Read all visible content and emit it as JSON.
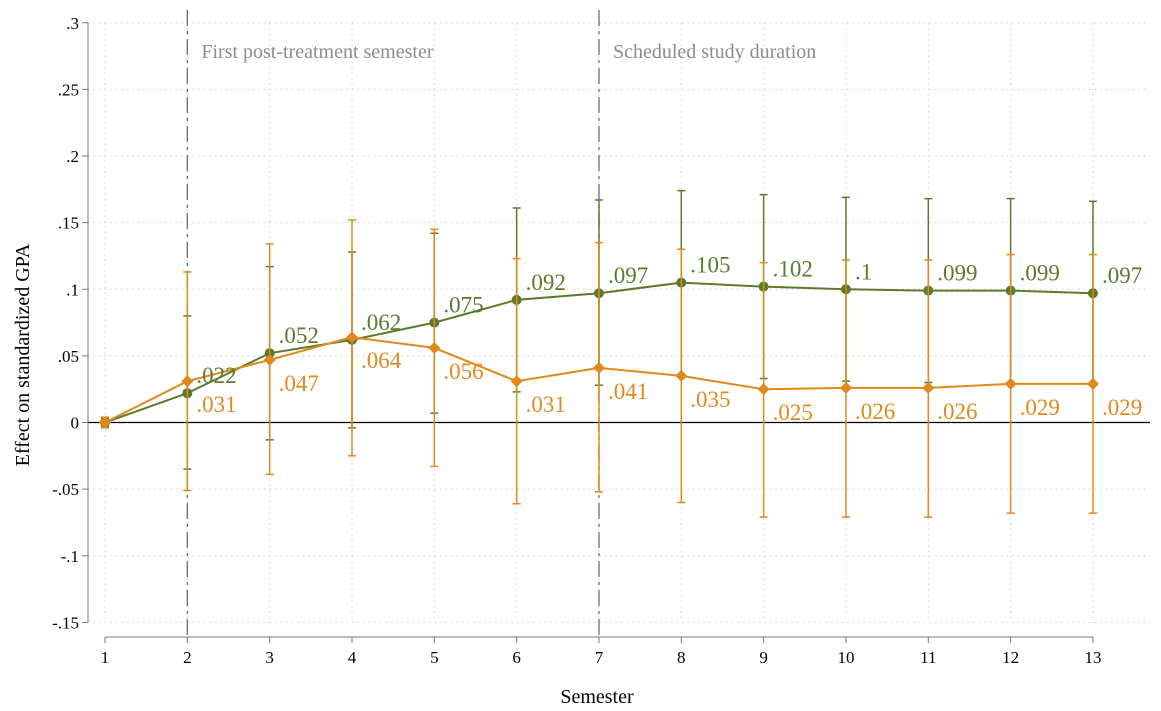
{
  "chart_data": {
    "type": "line",
    "xlabel": "Semester",
    "ylabel": "Effect on standardized GPA",
    "x": [
      1,
      2,
      3,
      4,
      5,
      6,
      7,
      8,
      9,
      10,
      11,
      12,
      13
    ],
    "xticks": [
      "1",
      "2",
      "3",
      "4",
      "5",
      "6",
      "7",
      "8",
      "9",
      "10",
      "11",
      "12",
      "13"
    ],
    "ylim": [
      -0.15,
      0.3
    ],
    "yticks": [
      {
        "value": 0.3,
        "label": ".3"
      },
      {
        "value": 0.25,
        "label": ".25"
      },
      {
        "value": 0.2,
        "label": ".2"
      },
      {
        "value": 0.15,
        "label": ".15"
      },
      {
        "value": 0.1,
        "label": ".1"
      },
      {
        "value": 0.05,
        "label": ".05"
      },
      {
        "value": 0,
        "label": "0"
      },
      {
        "value": -0.05,
        "label": "-.05"
      },
      {
        "value": -0.1,
        "label": "-.1"
      },
      {
        "value": -0.15,
        "label": "-.15"
      }
    ],
    "grid": true,
    "reference_lines": [
      {
        "x": 2,
        "label": "First post-treatment semester"
      },
      {
        "x": 7,
        "label": "Scheduled study duration"
      }
    ],
    "series": [
      {
        "color": "#5b7a2e",
        "marker": "circle",
        "values": [
          0,
          0.022,
          0.052,
          0.062,
          0.075,
          0.092,
          0.097,
          0.105,
          0.102,
          0.1,
          0.099,
          0.099,
          0.097
        ],
        "labels": [
          "",
          ".022",
          ".052",
          ".062",
          ".075",
          ".092",
          ".097",
          ".105",
          ".102",
          ".1",
          ".099",
          ".099",
          ".097"
        ],
        "ci_low": [
          -0.003,
          -0.035,
          -0.013,
          -0.004,
          0.007,
          0.023,
          0.028,
          0.036,
          0.033,
          0.031,
          0.03,
          0.03,
          0.028
        ],
        "ci_high": [
          0.003,
          0.08,
          0.117,
          0.128,
          0.142,
          0.161,
          0.167,
          0.174,
          0.171,
          0.169,
          0.168,
          0.168,
          0.166
        ]
      },
      {
        "color": "#e0891c",
        "marker": "diamond",
        "values": [
          0,
          0.031,
          0.047,
          0.064,
          0.056,
          0.031,
          0.041,
          0.035,
          0.025,
          0.026,
          0.026,
          0.029,
          0.029
        ],
        "labels": [
          "",
          ".031",
          ".047",
          ".064",
          ".056",
          ".031",
          ".041",
          ".035",
          ".025",
          ".026",
          ".026",
          ".029",
          ".029"
        ],
        "ci_low": [
          -0.004,
          -0.051,
          -0.039,
          -0.025,
          -0.033,
          -0.061,
          -0.052,
          -0.06,
          -0.071,
          -0.071,
          -0.071,
          -0.068,
          -0.068
        ],
        "ci_high": [
          0.004,
          0.113,
          0.134,
          0.152,
          0.145,
          0.123,
          0.135,
          0.13,
          0.12,
          0.122,
          0.122,
          0.126,
          0.126
        ]
      }
    ]
  }
}
